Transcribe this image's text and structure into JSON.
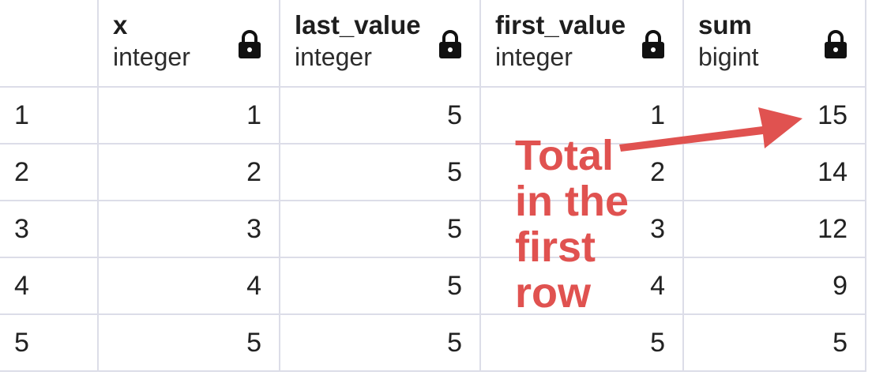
{
  "columns": [
    {
      "name": "x",
      "type": "integer"
    },
    {
      "name": "last_value",
      "type": "integer"
    },
    {
      "name": "first_value",
      "type": "integer"
    },
    {
      "name": "sum",
      "type": "bigint"
    }
  ],
  "rows": [
    {
      "rownum": "1",
      "x": "1",
      "last_value": "5",
      "first_value": "1",
      "sum": "15"
    },
    {
      "rownum": "2",
      "x": "2",
      "last_value": "5",
      "first_value": "2",
      "sum": "14"
    },
    {
      "rownum": "3",
      "x": "3",
      "last_value": "5",
      "first_value": "3",
      "sum": "12"
    },
    {
      "rownum": "4",
      "x": "4",
      "last_value": "5",
      "first_value": "4",
      "sum": "9"
    },
    {
      "rownum": "5",
      "x": "5",
      "last_value": "5",
      "first_value": "5",
      "sum": "5"
    }
  ],
  "icons": {
    "column_header": "lock-icon"
  },
  "annotation": {
    "lines": [
      "Total",
      "in the",
      "first",
      "row"
    ],
    "color": "#e05250"
  },
  "colors": {
    "grid_line": "#dcdde8",
    "text": "#222222"
  }
}
